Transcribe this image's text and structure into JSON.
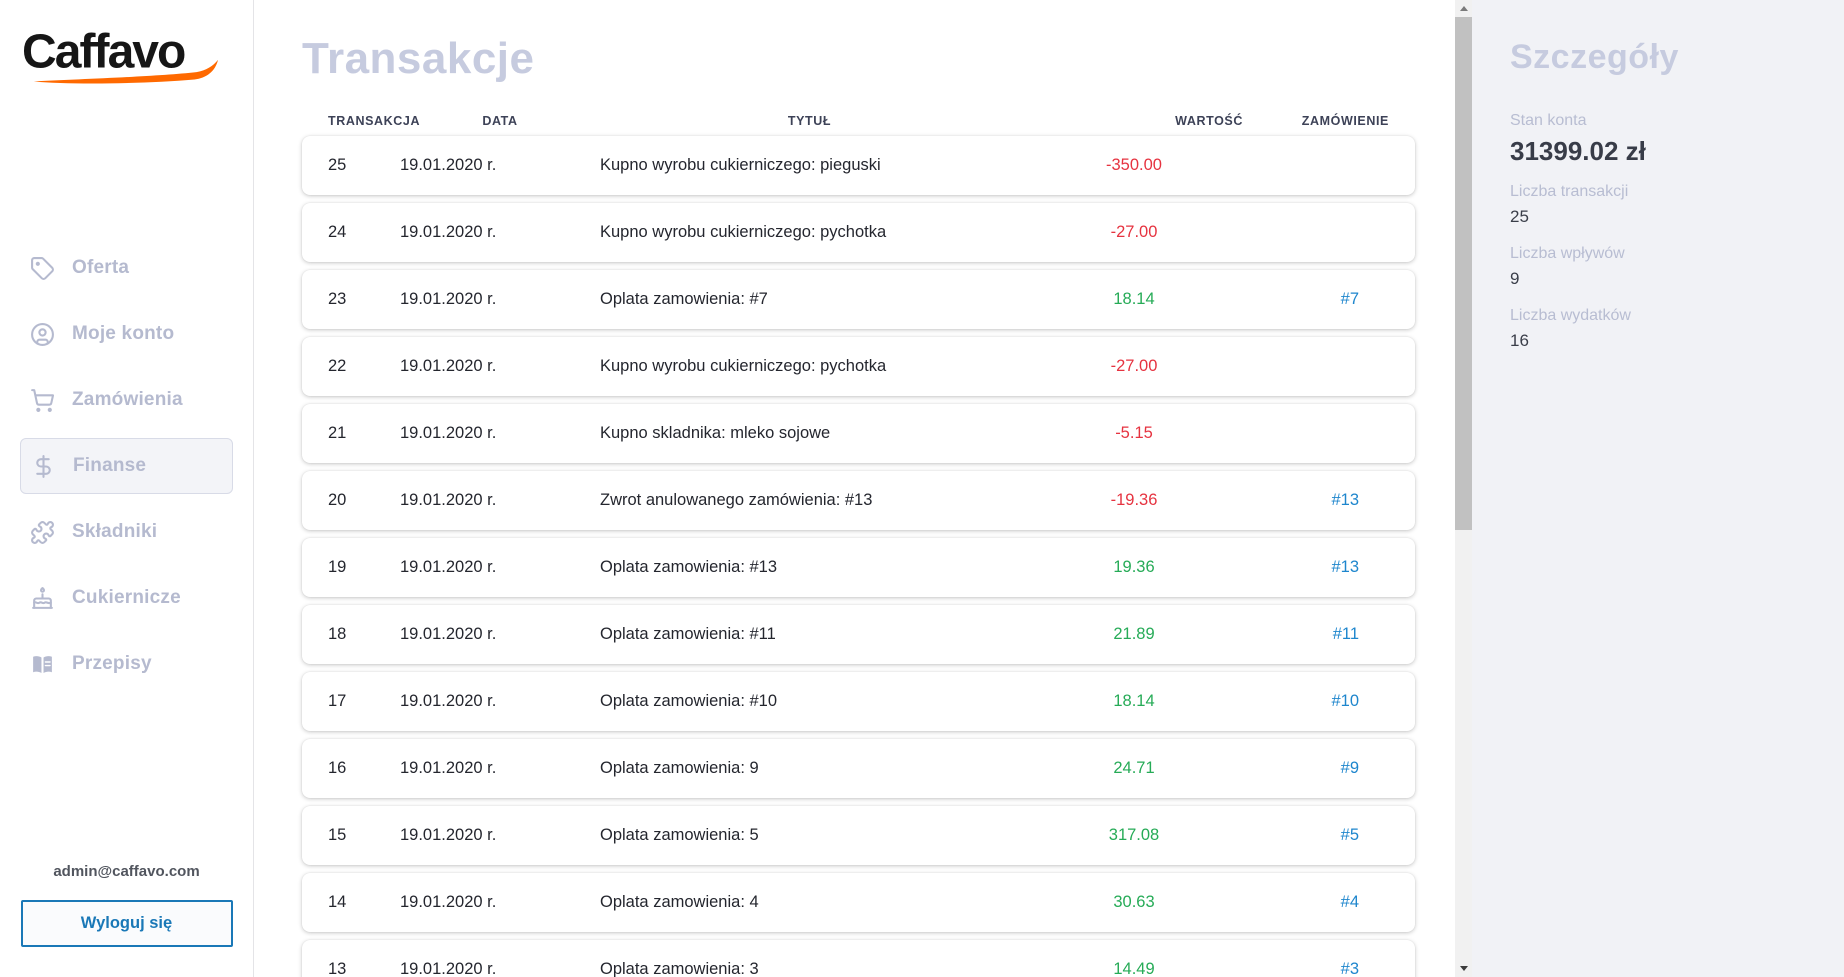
{
  "brand": {
    "name": "Caffavo"
  },
  "colors": {
    "accent_orange": "#ff6900",
    "negative_red": "#e63340",
    "positive_green": "#26ab57",
    "link_blue": "#1e86cd",
    "button_blue": "#1a78b7",
    "muted_lavender": "#b5bacf",
    "heading_lavender": "#c6cbdf"
  },
  "sidebar": {
    "items": [
      {
        "label": "Oferta",
        "icon": "tag-icon",
        "selected": false
      },
      {
        "label": "Moje konto",
        "icon": "user-icon",
        "selected": false
      },
      {
        "label": "Zamówienia",
        "icon": "cart-icon",
        "selected": false
      },
      {
        "label": "Finanse",
        "icon": "dollar-icon",
        "selected": true
      },
      {
        "label": "Składniki",
        "icon": "puzzle-icon",
        "selected": false
      },
      {
        "label": "Cukiernicze",
        "icon": "cake-icon",
        "selected": false
      },
      {
        "label": "Przepisy",
        "icon": "book-icon",
        "selected": false
      }
    ],
    "user_email": "admin@caffavo.com",
    "logout_label": "Wyloguj się"
  },
  "main": {
    "title": "Transakcje",
    "table": {
      "headers": [
        "TRANSAKCJA",
        "DATA",
        "TYTUŁ",
        "WARTOŚĆ",
        "ZAMÓWIENIE"
      ],
      "rows": [
        {
          "id": "25",
          "date": "19.01.2020 r.",
          "title": "Kupno wyrobu cukierniczego: pieguski",
          "value": "-350.00",
          "value_type": "negative",
          "order": ""
        },
        {
          "id": "24",
          "date": "19.01.2020 r.",
          "title": "Kupno wyrobu cukierniczego: pychotka",
          "value": "-27.00",
          "value_type": "negative",
          "order": ""
        },
        {
          "id": "23",
          "date": "19.01.2020 r.",
          "title": "Oplata zamowienia: #7",
          "value": "18.14",
          "value_type": "positive",
          "order": "#7"
        },
        {
          "id": "22",
          "date": "19.01.2020 r.",
          "title": "Kupno wyrobu cukierniczego: pychotka",
          "value": "-27.00",
          "value_type": "negative",
          "order": ""
        },
        {
          "id": "21",
          "date": "19.01.2020 r.",
          "title": "Kupno skladnika: mleko sojowe",
          "value": "-5.15",
          "value_type": "negative",
          "order": ""
        },
        {
          "id": "20",
          "date": "19.01.2020 r.",
          "title": "Zwrot anulowanego zamówienia: #13",
          "value": "-19.36",
          "value_type": "negative",
          "order": "#13"
        },
        {
          "id": "19",
          "date": "19.01.2020 r.",
          "title": "Oplata zamowienia: #13",
          "value": "19.36",
          "value_type": "positive",
          "order": "#13"
        },
        {
          "id": "18",
          "date": "19.01.2020 r.",
          "title": "Oplata zamowienia: #11",
          "value": "21.89",
          "value_type": "positive",
          "order": "#11"
        },
        {
          "id": "17",
          "date": "19.01.2020 r.",
          "title": "Oplata zamowienia: #10",
          "value": "18.14",
          "value_type": "positive",
          "order": "#10"
        },
        {
          "id": "16",
          "date": "19.01.2020 r.",
          "title": "Oplata zamowienia: 9",
          "value": "24.71",
          "value_type": "positive",
          "order": "#9"
        },
        {
          "id": "15",
          "date": "19.01.2020 r.",
          "title": "Oplata zamowienia: 5",
          "value": "317.08",
          "value_type": "positive",
          "order": "#5"
        },
        {
          "id": "14",
          "date": "19.01.2020 r.",
          "title": "Oplata zamowienia: 4",
          "value": "30.63",
          "value_type": "positive",
          "order": "#4"
        },
        {
          "id": "13",
          "date": "19.01.2020 r.",
          "title": "Oplata zamowienia: 3",
          "value": "14.49",
          "value_type": "positive",
          "order": "#3"
        }
      ]
    }
  },
  "details": {
    "title": "Szczegóły",
    "stats": [
      {
        "label": "Stan konta",
        "value": "31399.02 zł",
        "emphasis": true
      },
      {
        "label": "Liczba transakcji",
        "value": "25",
        "emphasis": false
      },
      {
        "label": "Liczba wpływów",
        "value": "9",
        "emphasis": false
      },
      {
        "label": "Liczba wydatków",
        "value": "16",
        "emphasis": false
      }
    ]
  }
}
